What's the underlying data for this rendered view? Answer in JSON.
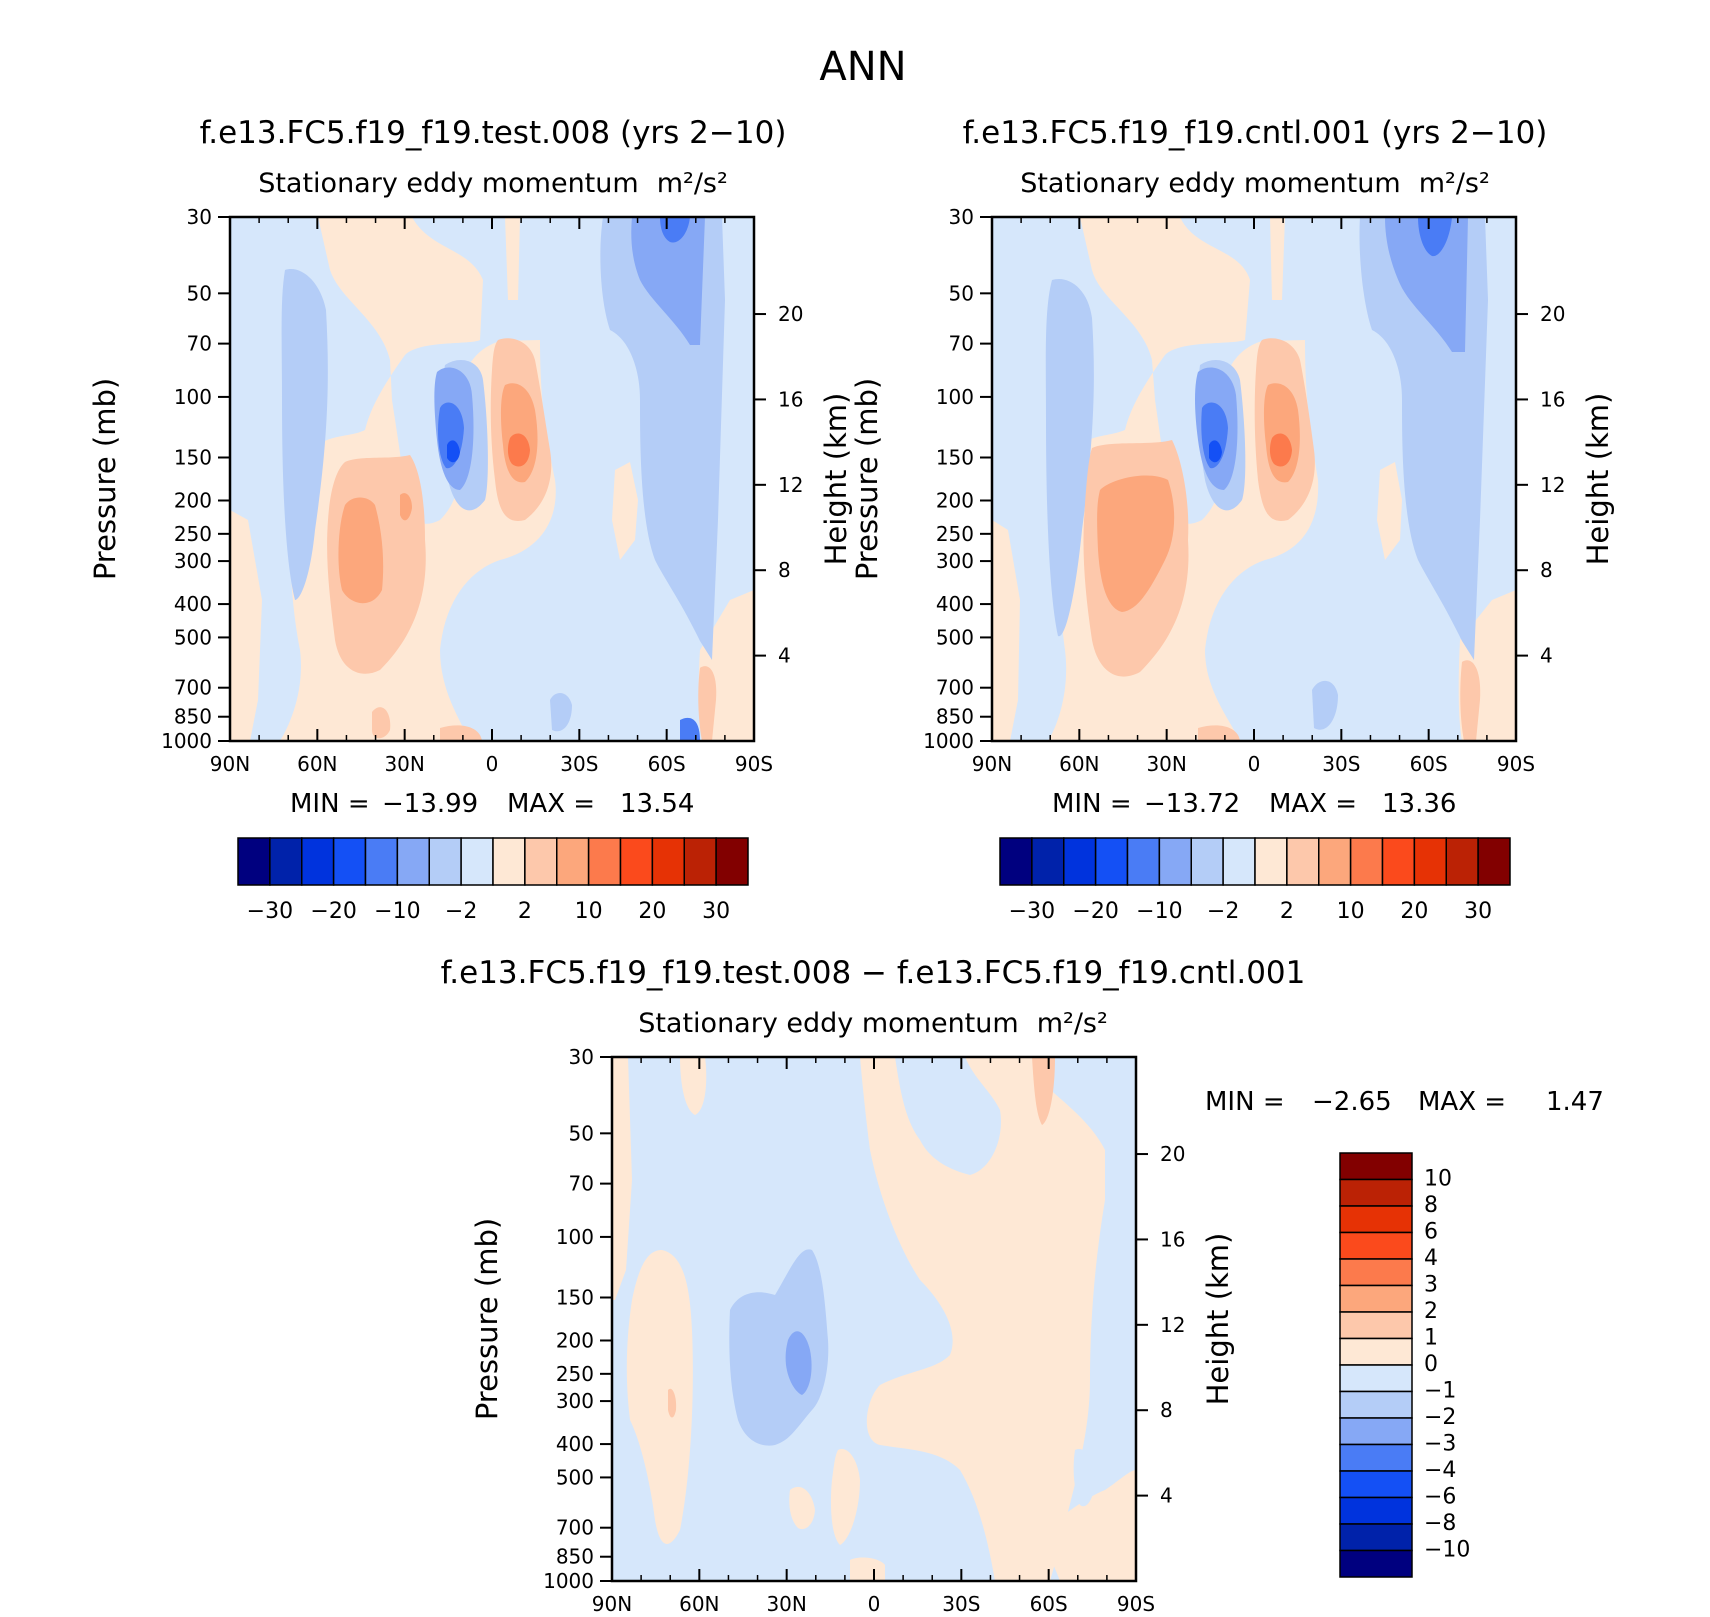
{
  "figure_title": "ANN",
  "chart_data": [
    {
      "type": "heatmap",
      "title": "f.e13.FC5.f19_f19.test.008 (yrs 2−10)",
      "subtitle": "Stationary eddy momentum",
      "units": "m²/s²",
      "xlabel": "",
      "ylabel": "Pressure (mb)",
      "ylabel_right": "Height (km)",
      "x_ticks": [
        "90N",
        "60N",
        "30N",
        "0",
        "30S",
        "60S",
        "90S"
      ],
      "y_ticks": [
        "30",
        "50",
        "70",
        "100",
        "150",
        "200",
        "250",
        "300",
        "400",
        "500",
        "700",
        "850",
        "1000"
      ],
      "y_ticks_right": [
        "20",
        "16",
        "12",
        "8",
        "4"
      ],
      "x_range": [
        90,
        -90
      ],
      "y_range": [
        1000,
        30
      ],
      "y_scale": "log",
      "min_label": "MIN =",
      "min_value": "−13.99",
      "max_label": "MAX =",
      "max_value": "13.54",
      "colorbar_ticks": [
        "−30",
        "−20",
        "−10",
        "−2",
        "2",
        "10",
        "20",
        "30"
      ],
      "features": [
        {
          "lat": -10,
          "p": 150,
          "value": 13.54
        },
        {
          "lat": 13,
          "p": 150,
          "value": -13.99
        },
        {
          "lat": 45,
          "p": 280,
          "value": 7
        },
        {
          "lat": -65,
          "p": 35,
          "value": -8
        }
      ]
    },
    {
      "type": "heatmap",
      "title": "f.e13.FC5.f19_f19.cntl.001 (yrs 2−10)",
      "subtitle": "Stationary eddy momentum",
      "units": "m²/s²",
      "xlabel": "",
      "ylabel": "Pressure (mb)",
      "ylabel_right": "Height (km)",
      "x_ticks": [
        "90N",
        "60N",
        "30N",
        "0",
        "30S",
        "60S",
        "90S"
      ],
      "y_ticks": [
        "30",
        "50",
        "70",
        "100",
        "150",
        "200",
        "250",
        "300",
        "400",
        "500",
        "700",
        "850",
        "1000"
      ],
      "y_ticks_right": [
        "20",
        "16",
        "12",
        "8",
        "4"
      ],
      "x_range": [
        90,
        -90
      ],
      "y_range": [
        1000,
        30
      ],
      "y_scale": "log",
      "min_label": "MIN =",
      "min_value": "−13.72",
      "max_label": "MAX =",
      "max_value": "13.36",
      "colorbar_ticks": [
        "−30",
        "−20",
        "−10",
        "−2",
        "2",
        "10",
        "20",
        "30"
      ],
      "features": [
        {
          "lat": -10,
          "p": 150,
          "value": 13.36
        },
        {
          "lat": 13,
          "p": 150,
          "value": -13.72
        },
        {
          "lat": 45,
          "p": 280,
          "value": 8
        },
        {
          "lat": -63,
          "p": 35,
          "value": -8
        }
      ]
    },
    {
      "type": "heatmap",
      "title": "f.e13.FC5.f19_f19.test.008 − f.e13.FC5.f19_f19.cntl.001",
      "subtitle": "Stationary eddy momentum",
      "units": "m²/s²",
      "xlabel": "",
      "ylabel": "Pressure (mb)",
      "ylabel_right": "Height (km)",
      "x_ticks": [
        "90N",
        "60N",
        "30N",
        "0",
        "30S",
        "60S",
        "90S"
      ],
      "y_ticks": [
        "30",
        "50",
        "70",
        "100",
        "150",
        "200",
        "250",
        "300",
        "400",
        "500",
        "700",
        "850",
        "1000"
      ],
      "y_ticks_right": [
        "20",
        "16",
        "12",
        "8",
        "4"
      ],
      "x_range": [
        90,
        -90
      ],
      "y_range": [
        1000,
        30
      ],
      "y_scale": "log",
      "min_label": "MIN =",
      "min_value": "−2.65",
      "max_label": "MAX =",
      "max_value": "1.47",
      "colorbar_ticks": [
        "10",
        "8",
        "6",
        "4",
        "3",
        "2",
        "1",
        "0",
        "−1",
        "−2",
        "−3",
        "−4",
        "−6",
        "−8",
        "−10"
      ],
      "features": [
        {
          "lat": 27,
          "p": 200,
          "value": -2.65
        },
        {
          "lat": -60,
          "p": 35,
          "value": 1.47
        },
        {
          "lat": 70,
          "p": 280,
          "value": 1.2
        }
      ]
    }
  ],
  "colors": {
    "palette": [
      "#00007f",
      "#0022aa",
      "#0033dd",
      "#1450f5",
      "#4a7cf5",
      "#86a8f5",
      "#b4cdf7",
      "#d6e7fb",
      "#fee8d5",
      "#fdc8ab",
      "#fca77c",
      "#fc7a4c",
      "#fb4a1c",
      "#e63205",
      "#bb2205",
      "#820000"
    ],
    "frame": "#000000"
  }
}
